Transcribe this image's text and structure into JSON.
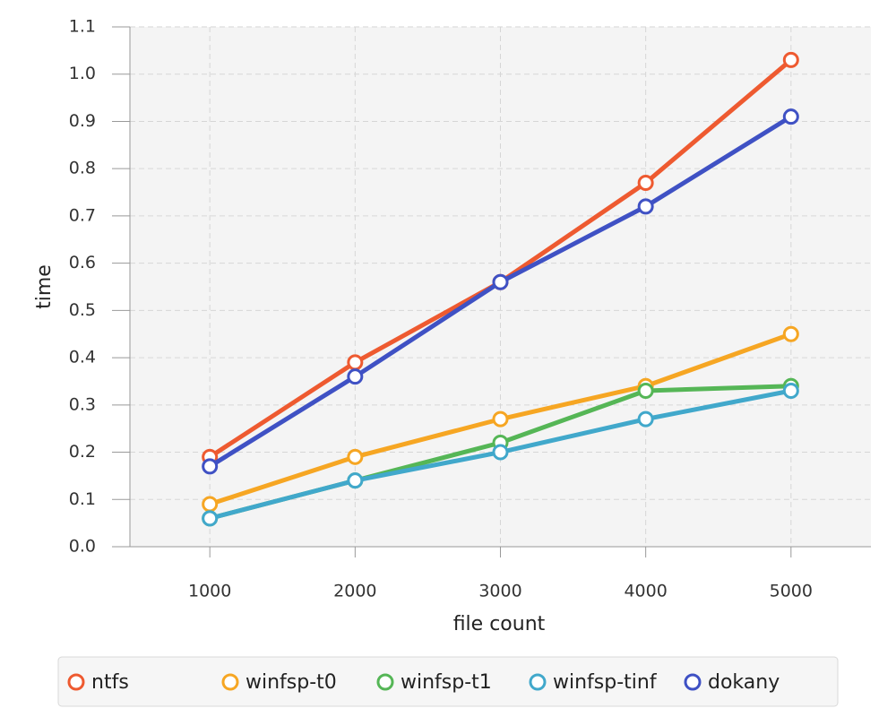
{
  "chart_data": {
    "type": "line",
    "x_label": "file count",
    "y_label": "time",
    "x": [
      1000,
      2000,
      3000,
      4000,
      5000
    ],
    "xlim": [
      450,
      5550
    ],
    "xticks": [
      1000,
      2000,
      3000,
      4000,
      5000
    ],
    "ylim": [
      0,
      1.1
    ],
    "yticks": [
      {
        "value": 0,
        "label": "0.0"
      },
      0.1,
      0.2,
      0.3,
      0.4,
      0.5,
      0.6,
      0.7,
      0.8,
      0.9,
      {
        "value": 1,
        "label": "1.0"
      },
      1.1
    ],
    "grid": true,
    "legend": "bottom",
    "series": [
      {
        "name": "ntfs",
        "color": "#ee5a30",
        "values": [
          0.19,
          0.39,
          0.56,
          0.77,
          1.03
        ]
      },
      {
        "name": "winfsp-t0",
        "color": "#f6a623",
        "values": [
          0.09,
          0.19,
          0.27,
          0.34,
          0.45
        ]
      },
      {
        "name": "winfsp-t1",
        "color": "#55b656",
        "values": [
          0.06,
          0.14,
          0.22,
          0.33,
          0.34
        ]
      },
      {
        "name": "winfsp-tinf",
        "color": "#41a8cb",
        "values": [
          0.06,
          0.14,
          0.2,
          0.27,
          0.33
        ]
      },
      {
        "name": "dokany",
        "color": "#3f51c4",
        "values": [
          0.17,
          0.36,
          0.56,
          0.72,
          0.91
        ]
      }
    ]
  }
}
